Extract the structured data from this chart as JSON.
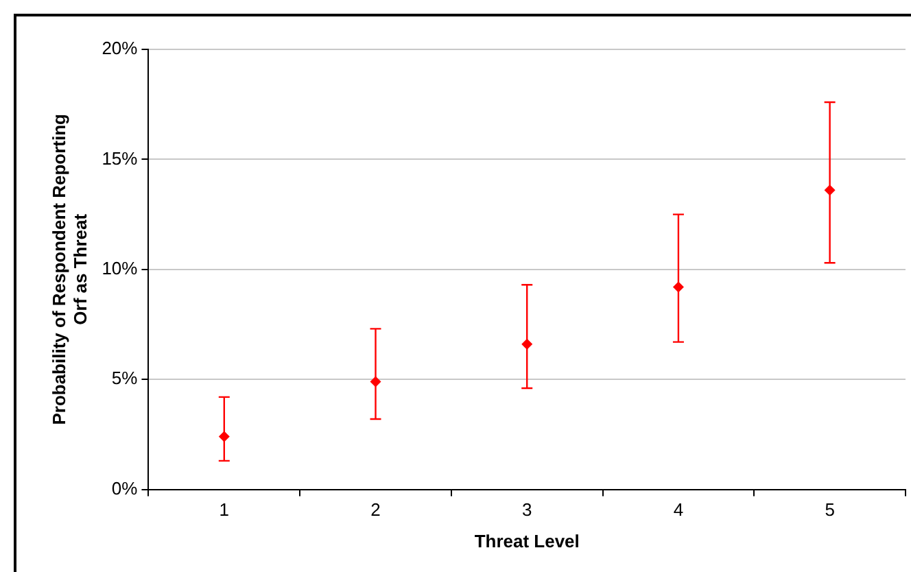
{
  "chart_data": {
    "type": "scatter",
    "xlabel": "Threat Level",
    "ylabel": "Probability of Respondent Reporting Orf as Threat",
    "categories": [
      "1",
      "2",
      "3",
      "4",
      "5"
    ],
    "series": [
      {
        "color": "#ff0000",
        "values": [
          2.4,
          4.9,
          6.6,
          9.2,
          13.6
        ],
        "errors": [
          [
            1.3,
            4.2
          ],
          [
            3.2,
            7.3
          ],
          [
            4.6,
            9.3
          ],
          [
            6.7,
            12.5
          ],
          [
            10.3,
            17.6
          ]
        ]
      }
    ],
    "ylim": [
      0,
      20
    ],
    "yticks": [
      {
        "value": 0,
        "label": "0%"
      },
      {
        "value": 5,
        "label": "5%"
      },
      {
        "value": 10,
        "label": "10%"
      },
      {
        "value": 15,
        "label": "15%"
      },
      {
        "value": 20,
        "label": "20%"
      }
    ],
    "grid": "y",
    "legend": false,
    "marker": "diamond"
  }
}
